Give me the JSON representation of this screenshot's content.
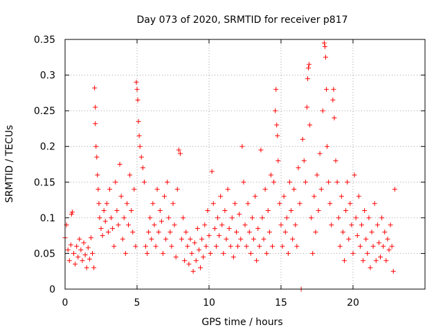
{
  "chart_data": {
    "type": "scatter",
    "title": "Day 073 of 2020, SRMTID for receiver p817",
    "xlabel": "GPS time / hours",
    "ylabel": "SRMTID / TECUs",
    "xlim": [
      0,
      25
    ],
    "ylim": [
      0,
      0.35
    ],
    "x_ticks": [
      0,
      5,
      10,
      15,
      20
    ],
    "x_tick_labels": [
      "0",
      "5",
      "10",
      "15",
      "20"
    ],
    "y_ticks": [
      0,
      0.05,
      0.1,
      0.15,
      0.2,
      0.25,
      0.3,
      0.35
    ],
    "y_tick_labels": [
      "0",
      "0.05",
      "0.1",
      "0.15",
      "0.2",
      "0.25",
      "0.3",
      "0.35"
    ],
    "grid": true,
    "marker": "+",
    "series": [
      {
        "name": "SRMTID",
        "color": "#ff0000",
        "points": [
          [
            0.0,
            0.072
          ],
          [
            0.1,
            0.09
          ],
          [
            0.2,
            0.055
          ],
          [
            0.3,
            0.04
          ],
          [
            0.4,
            0.062
          ],
          [
            0.45,
            0.105
          ],
          [
            0.5,
            0.108
          ],
          [
            0.6,
            0.05
          ],
          [
            0.7,
            0.035
          ],
          [
            0.8,
            0.06
          ],
          [
            0.9,
            0.045
          ],
          [
            1.0,
            0.07
          ],
          [
            1.1,
            0.055
          ],
          [
            1.2,
            0.04
          ],
          [
            1.3,
            0.065
          ],
          [
            1.4,
            0.048
          ],
          [
            1.5,
            0.03
          ],
          [
            1.6,
            0.058
          ],
          [
            1.7,
            0.042
          ],
          [
            1.8,
            0.072
          ],
          [
            1.9,
            0.05
          ],
          [
            2.0,
            0.03
          ],
          [
            2.05,
            0.282
          ],
          [
            2.1,
            0.255
          ],
          [
            2.1,
            0.232
          ],
          [
            2.15,
            0.2
          ],
          [
            2.2,
            0.185
          ],
          [
            2.25,
            0.16
          ],
          [
            2.3,
            0.14
          ],
          [
            2.35,
            0.12
          ],
          [
            2.4,
            0.1
          ],
          [
            2.5,
            0.085
          ],
          [
            2.6,
            0.075
          ],
          [
            2.7,
            0.11
          ],
          [
            2.8,
            0.095
          ],
          [
            2.9,
            0.12
          ],
          [
            3.0,
            0.08
          ],
          [
            3.1,
            0.14
          ],
          [
            3.2,
            0.1
          ],
          [
            3.3,
            0.085
          ],
          [
            3.4,
            0.06
          ],
          [
            3.5,
            0.15
          ],
          [
            3.6,
            0.11
          ],
          [
            3.7,
            0.09
          ],
          [
            3.8,
            0.175
          ],
          [
            3.9,
            0.13
          ],
          [
            4.0,
            0.07
          ],
          [
            4.1,
            0.1
          ],
          [
            4.2,
            0.05
          ],
          [
            4.3,
            0.12
          ],
          [
            4.4,
            0.09
          ],
          [
            4.5,
            0.16
          ],
          [
            4.6,
            0.11
          ],
          [
            4.7,
            0.08
          ],
          [
            4.8,
            0.14
          ],
          [
            4.9,
            0.06
          ],
          [
            4.95,
            0.29
          ],
          [
            5.0,
            0.28
          ],
          [
            5.05,
            0.265
          ],
          [
            5.1,
            0.235
          ],
          [
            5.15,
            0.215
          ],
          [
            5.2,
            0.2
          ],
          [
            5.3,
            0.185
          ],
          [
            5.4,
            0.17
          ],
          [
            5.5,
            0.15
          ],
          [
            5.6,
            0.06
          ],
          [
            5.7,
            0.05
          ],
          [
            5.8,
            0.08
          ],
          [
            5.9,
            0.1
          ],
          [
            6.0,
            0.07
          ],
          [
            6.1,
            0.12
          ],
          [
            6.2,
            0.09
          ],
          [
            6.3,
            0.06
          ],
          [
            6.4,
            0.14
          ],
          [
            6.5,
            0.08
          ],
          [
            6.6,
            0.11
          ],
          [
            6.7,
            0.095
          ],
          [
            6.8,
            0.05
          ],
          [
            6.9,
            0.13
          ],
          [
            7.0,
            0.07
          ],
          [
            7.1,
            0.15
          ],
          [
            7.2,
            0.1
          ],
          [
            7.3,
            0.08
          ],
          [
            7.4,
            0.06
          ],
          [
            7.5,
            0.12
          ],
          [
            7.6,
            0.09
          ],
          [
            7.7,
            0.045
          ],
          [
            7.8,
            0.14
          ],
          [
            7.9,
            0.195
          ],
          [
            8.0,
            0.19
          ],
          [
            8.1,
            0.07
          ],
          [
            8.2,
            0.1
          ],
          [
            8.3,
            0.04
          ],
          [
            8.4,
            0.08
          ],
          [
            8.5,
            0.06
          ],
          [
            8.6,
            0.035
          ],
          [
            8.7,
            0.07
          ],
          [
            8.8,
            0.05
          ],
          [
            8.9,
            0.025
          ],
          [
            9.0,
            0.065
          ],
          [
            9.1,
            0.04
          ],
          [
            9.2,
            0.085
          ],
          [
            9.3,
            0.055
          ],
          [
            9.4,
            0.03
          ],
          [
            9.5,
            0.07
          ],
          [
            9.6,
            0.045
          ],
          [
            9.7,
            0.09
          ],
          [
            9.8,
            0.06
          ],
          [
            9.9,
            0.11
          ],
          [
            10.0,
            0.075
          ],
          [
            10.1,
            0.05
          ],
          [
            10.2,
            0.165
          ],
          [
            10.3,
            0.12
          ],
          [
            10.4,
            0.085
          ],
          [
            10.5,
            0.06
          ],
          [
            10.6,
            0.1
          ],
          [
            10.7,
            0.075
          ],
          [
            10.8,
            0.13
          ],
          [
            10.9,
            0.09
          ],
          [
            11.0,
            0.05
          ],
          [
            11.1,
            0.11
          ],
          [
            11.2,
            0.07
          ],
          [
            11.3,
            0.14
          ],
          [
            11.4,
            0.085
          ],
          [
            11.5,
            0.06
          ],
          [
            11.6,
            0.1
          ],
          [
            11.7,
            0.045
          ],
          [
            11.8,
            0.12
          ],
          [
            11.9,
            0.08
          ],
          [
            12.0,
            0.06
          ],
          [
            12.1,
            0.105
          ],
          [
            12.2,
            0.07
          ],
          [
            12.3,
            0.2
          ],
          [
            12.4,
            0.15
          ],
          [
            12.5,
            0.09
          ],
          [
            12.6,
            0.06
          ],
          [
            12.7,
            0.12
          ],
          [
            12.8,
            0.08
          ],
          [
            12.9,
            0.05
          ],
          [
            13.0,
            0.1
          ],
          [
            13.1,
            0.07
          ],
          [
            13.2,
            0.13
          ],
          [
            13.3,
            0.04
          ],
          [
            13.4,
            0.085
          ],
          [
            13.5,
            0.06
          ],
          [
            13.6,
            0.195
          ],
          [
            13.7,
            0.1
          ],
          [
            13.8,
            0.07
          ],
          [
            13.9,
            0.14
          ],
          [
            14.0,
            0.05
          ],
          [
            14.1,
            0.11
          ],
          [
            14.2,
            0.08
          ],
          [
            14.3,
            0.16
          ],
          [
            14.4,
            0.06
          ],
          [
            14.5,
            0.15
          ],
          [
            14.6,
            0.25
          ],
          [
            14.65,
            0.28
          ],
          [
            14.7,
            0.23
          ],
          [
            14.75,
            0.215
          ],
          [
            14.8,
            0.18
          ],
          [
            14.9,
            0.12
          ],
          [
            15.0,
            0.09
          ],
          [
            15.1,
            0.06
          ],
          [
            15.2,
            0.13
          ],
          [
            15.3,
            0.08
          ],
          [
            15.4,
            0.1
          ],
          [
            15.5,
            0.05
          ],
          [
            15.6,
            0.15
          ],
          [
            15.7,
            0.11
          ],
          [
            15.8,
            0.07
          ],
          [
            15.9,
            0.14
          ],
          [
            16.0,
            0.09
          ],
          [
            16.1,
            0.06
          ],
          [
            16.2,
            0.17
          ],
          [
            16.3,
            0.12
          ],
          [
            16.4,
            0.0
          ],
          [
            16.5,
            0.21
          ],
          [
            16.6,
            0.18
          ],
          [
            16.7,
            0.15
          ],
          [
            16.8,
            0.255
          ],
          [
            16.85,
            0.295
          ],
          [
            16.9,
            0.31
          ],
          [
            16.95,
            0.315
          ],
          [
            17.0,
            0.23
          ],
          [
            17.1,
            0.1
          ],
          [
            17.2,
            0.05
          ],
          [
            17.3,
            0.13
          ],
          [
            17.4,
            0.08
          ],
          [
            17.5,
            0.16
          ],
          [
            17.6,
            0.11
          ],
          [
            17.7,
            0.19
          ],
          [
            17.8,
            0.14
          ],
          [
            17.9,
            0.25
          ],
          [
            18.0,
            0.345
          ],
          [
            18.05,
            0.34
          ],
          [
            18.1,
            0.325
          ],
          [
            18.15,
            0.28
          ],
          [
            18.2,
            0.2
          ],
          [
            18.3,
            0.15
          ],
          [
            18.4,
            0.12
          ],
          [
            18.5,
            0.09
          ],
          [
            18.6,
            0.265
          ],
          [
            18.65,
            0.28
          ],
          [
            18.7,
            0.24
          ],
          [
            18.8,
            0.18
          ],
          [
            18.9,
            0.15
          ],
          [
            19.0,
            0.1
          ],
          [
            19.1,
            0.06
          ],
          [
            19.2,
            0.13
          ],
          [
            19.3,
            0.08
          ],
          [
            19.4,
            0.04
          ],
          [
            19.5,
            0.11
          ],
          [
            19.6,
            0.15
          ],
          [
            19.7,
            0.07
          ],
          [
            19.8,
            0.12
          ],
          [
            19.9,
            0.09
          ],
          [
            20.0,
            0.05
          ],
          [
            20.1,
            0.16
          ],
          [
            20.2,
            0.1
          ],
          [
            20.3,
            0.075
          ],
          [
            20.4,
            0.13
          ],
          [
            20.5,
            0.06
          ],
          [
            20.6,
            0.09
          ],
          [
            20.7,
            0.04
          ],
          [
            20.8,
            0.11
          ],
          [
            20.9,
            0.07
          ],
          [
            21.0,
            0.05
          ],
          [
            21.1,
            0.1
          ],
          [
            21.2,
            0.03
          ],
          [
            21.3,
            0.08
          ],
          [
            21.4,
            0.06
          ],
          [
            21.5,
            0.12
          ],
          [
            21.6,
            0.04
          ],
          [
            21.7,
            0.09
          ],
          [
            21.8,
            0.065
          ],
          [
            21.9,
            0.045
          ],
          [
            22.0,
            0.1
          ],
          [
            22.1,
            0.06
          ],
          [
            22.2,
            0.08
          ],
          [
            22.3,
            0.04
          ],
          [
            22.4,
            0.07
          ],
          [
            22.5,
            0.055
          ],
          [
            22.6,
            0.09
          ],
          [
            22.7,
            0.06
          ],
          [
            22.8,
            0.025
          ],
          [
            22.9,
            0.14
          ]
        ]
      }
    ]
  }
}
